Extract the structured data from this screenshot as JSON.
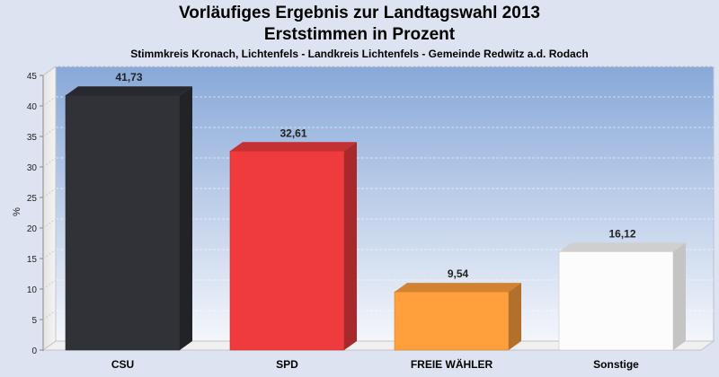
{
  "header": {
    "title": "Vorläufiges Ergebnis zur Landtagswahl 2013",
    "subtitle": "Erststimmen in Prozent",
    "location": "Stimmkreis Kronach, Lichtenfels - Landkreis Lichtenfels - Gemeinde Redwitz a.d. Rodach"
  },
  "chart_data": {
    "type": "bar",
    "title": "Vorläufiges Ergebnis zur Landtagswahl 2013",
    "subtitle": "Erststimmen in Prozent",
    "categories": [
      "CSU",
      "SPD",
      "FREIE WÄHLER",
      "Sonstige"
    ],
    "values": [
      41.73,
      32.61,
      9.54,
      16.12
    ],
    "value_labels": [
      "41,73",
      "32,61",
      "9,54",
      "16,12"
    ],
    "colors": [
      "#303238",
      "#ef3a3e",
      "#ffa03c",
      "#fcfcfc"
    ],
    "ylabel": "%",
    "xlabel": "",
    "ylim": [
      0,
      45
    ],
    "yticks": [
      0,
      5,
      10,
      15,
      20,
      25,
      30,
      35,
      40,
      45
    ],
    "grid": true,
    "legend": "none"
  }
}
